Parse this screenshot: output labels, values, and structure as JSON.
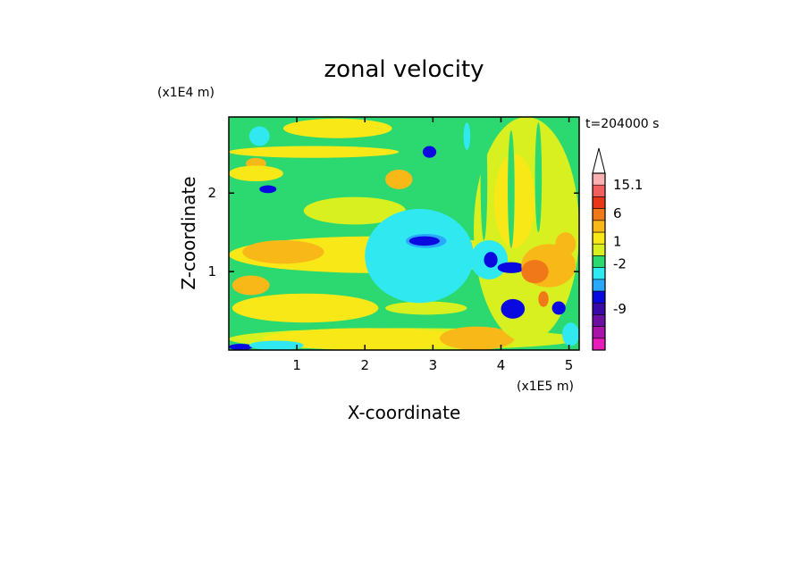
{
  "chart_data": {
    "type": "heatmap",
    "title": "zonal velocity",
    "xlabel": "X-coordinate",
    "ylabel": "Z-coordinate",
    "x_scale_label": "(x1E5 m)",
    "y_scale_label": "(x1E4 m)",
    "time_label": "t=204000 s",
    "xlim": [
      0,
      5.15
    ],
    "ylim": [
      0,
      2.97
    ],
    "x_ticks": [
      {
        "value": 1,
        "label": "1"
      },
      {
        "value": 2,
        "label": "2"
      },
      {
        "value": 3,
        "label": "3"
      },
      {
        "value": 4,
        "label": "4"
      },
      {
        "value": 5,
        "label": "5"
      }
    ],
    "y_ticks": [
      {
        "value": 1,
        "label": "1"
      },
      {
        "value": 2,
        "label": "2"
      }
    ],
    "colorbar": {
      "levels": [
        {
          "color": "#e81cb8"
        },
        {
          "color": "#a813a8"
        },
        {
          "color": "#6a0fa0"
        },
        {
          "color": "#3a0aa6"
        },
        {
          "color": "#0a0ae0"
        },
        {
          "color": "#2aa8ff"
        },
        {
          "color": "#30e8f0"
        },
        {
          "color": "#2cd870"
        },
        {
          "color": "#d8f020"
        },
        {
          "color": "#f8e818"
        },
        {
          "color": "#f8b818"
        },
        {
          "color": "#f07818"
        },
        {
          "color": "#e83818"
        },
        {
          "color": "#f06060"
        },
        {
          "color": "#f8b0b0"
        }
      ],
      "labels": [
        {
          "value": "15.1",
          "level": 14
        },
        {
          "value": "6",
          "level": 11.6
        },
        {
          "value": "1",
          "level": 9.2
        },
        {
          "value": "-2",
          "level": 7.3
        },
        {
          "value": "-9",
          "level": 3.5
        }
      ]
    },
    "field": {
      "background": "#2cd870",
      "regions": [
        {
          "color": "#d8f020",
          "x": [
            0,
            5.15
          ],
          "y": [
            0,
            0.28
          ]
        },
        {
          "color": "#f8e818",
          "x": [
            0.5,
            3.6
          ],
          "y": [
            0,
            0.28
          ]
        },
        {
          "color": "#0a0ae0",
          "x": [
            0,
            0.35
          ],
          "y": [
            0,
            0.08
          ]
        },
        {
          "color": "#30e8f0",
          "x": [
            0.3,
            1.1
          ],
          "y": [
            0,
            0.12
          ]
        },
        {
          "color": "#f8b818",
          "x": [
            3.1,
            4.2
          ],
          "y": [
            0,
            0.3
          ]
        },
        {
          "color": "#f8e818",
          "x": [
            0,
            2.5
          ],
          "y": [
            2.45,
            2.6
          ]
        },
        {
          "color": "#d8f020",
          "x": [
            1.1,
            2.6
          ],
          "y": [
            1.6,
            1.95
          ]
        },
        {
          "color": "#f8e818",
          "x": [
            0,
            4.4
          ],
          "y": [
            0.98,
            1.45
          ]
        },
        {
          "color": "#f8b818",
          "x": [
            0.2,
            1.4
          ],
          "y": [
            1.1,
            1.4
          ]
        },
        {
          "color": "#f8b818",
          "x": [
            0.05,
            0.6
          ],
          "y": [
            0.7,
            0.95
          ]
        },
        {
          "color": "#f8e818",
          "x": [
            0.05,
            2.2
          ],
          "y": [
            0.35,
            0.72
          ]
        },
        {
          "color": "#d8f020",
          "x": [
            2.3,
            3.5
          ],
          "y": [
            0.45,
            0.62
          ]
        },
        {
          "color": "#f8b818",
          "x": [
            2.3,
            2.7
          ],
          "y": [
            2.05,
            2.3
          ]
        },
        {
          "color": "#30e8f0",
          "x": [
            2.0,
            3.6
          ],
          "y": [
            0.6,
            1.8
          ]
        },
        {
          "color": "#2aa8ff",
          "x": [
            2.6,
            3.2
          ],
          "y": [
            1.3,
            1.48
          ]
        },
        {
          "color": "#0a0ae0",
          "x": [
            2.65,
            3.1
          ],
          "y": [
            1.33,
            1.45
          ]
        },
        {
          "color": "#0a0ae0",
          "x": [
            2.85,
            3.05
          ],
          "y": [
            2.45,
            2.6
          ]
        },
        {
          "color": "#0a0ae0",
          "x": [
            0.45,
            0.7
          ],
          "y": [
            2.0,
            2.1
          ]
        },
        {
          "color": "#30e8f0",
          "x": [
            0.3,
            0.6
          ],
          "y": [
            2.6,
            2.85
          ]
        },
        {
          "color": "#f8b818",
          "x": [
            0.25,
            0.55
          ],
          "y": [
            2.3,
            2.45
          ]
        },
        {
          "color": "#f8e818",
          "x": [
            0,
            0.8
          ],
          "y": [
            2.15,
            2.35
          ]
        },
        {
          "color": "#f8e818",
          "x": [
            0.8,
            2.4
          ],
          "y": [
            2.7,
            2.95
          ]
        },
        {
          "color": "#d8f020",
          "x": [
            3.6,
            5.15
          ],
          "y": [
            0.1,
            2.97
          ]
        },
        {
          "color": "#f8e818",
          "x": [
            3.9,
            4.5
          ],
          "y": [
            1.3,
            2.5
          ]
        },
        {
          "color": "#30e8f0",
          "x": [
            3.55,
            4.1
          ],
          "y": [
            0.9,
            1.4
          ]
        },
        {
          "color": "#0a0ae0",
          "x": [
            3.75,
            3.95
          ],
          "y": [
            1.05,
            1.25
          ]
        },
        {
          "color": "#0a0ae0",
          "x": [
            3.95,
            4.35
          ],
          "y": [
            0.98,
            1.12
          ]
        },
        {
          "color": "#f8b818",
          "x": [
            4.3,
            5.1
          ],
          "y": [
            0.8,
            1.35
          ]
        },
        {
          "color": "#f07818",
          "x": [
            4.3,
            4.7
          ],
          "y": [
            0.85,
            1.15
          ]
        },
        {
          "color": "#f8b818",
          "x": [
            4.8,
            5.1
          ],
          "y": [
            1.2,
            1.5
          ]
        },
        {
          "color": "#f07818",
          "x": [
            4.55,
            4.7
          ],
          "y": [
            0.55,
            0.75
          ]
        },
        {
          "color": "#0a0ae0",
          "x": [
            4.0,
            4.35
          ],
          "y": [
            0.4,
            0.65
          ]
        },
        {
          "color": "#0a0ae0",
          "x": [
            4.75,
            4.95
          ],
          "y": [
            0.45,
            0.62
          ]
        },
        {
          "color": "#30e8f0",
          "x": [
            4.9,
            5.15
          ],
          "y": [
            0.05,
            0.35
          ]
        },
        {
          "color": "#2cd870",
          "x": [
            3.7,
            3.8
          ],
          "y": [
            1.4,
            2.9
          ]
        },
        {
          "color": "#2cd870",
          "x": [
            4.1,
            4.2
          ],
          "y": [
            1.3,
            2.8
          ]
        },
        {
          "color": "#2cd870",
          "x": [
            4.5,
            4.6
          ],
          "y": [
            1.5,
            2.9
          ]
        },
        {
          "color": "#30e8f0",
          "x": [
            3.45,
            3.55
          ],
          "y": [
            2.55,
            2.9
          ]
        }
      ]
    }
  }
}
